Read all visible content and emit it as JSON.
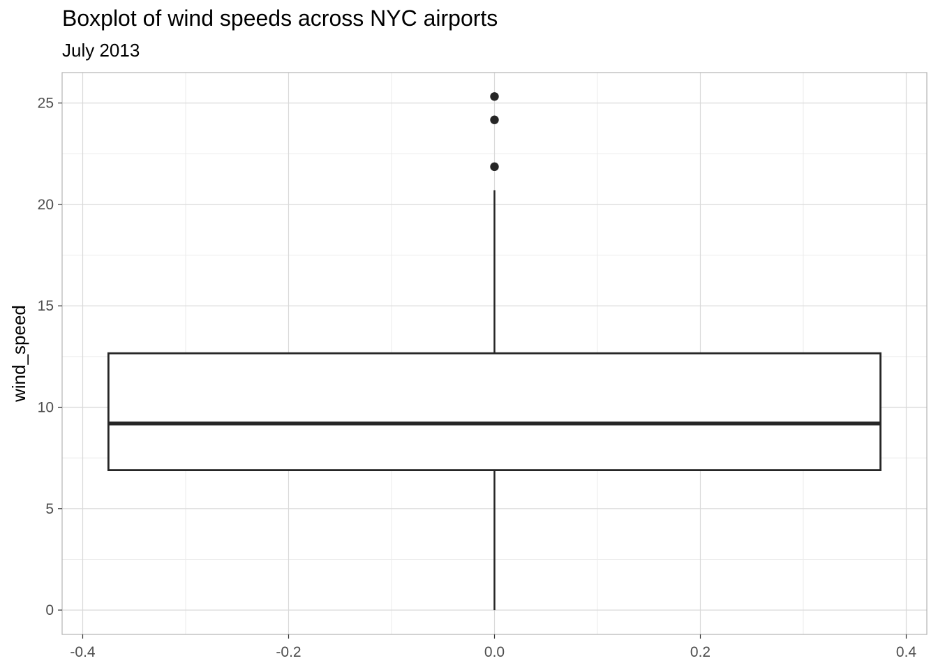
{
  "chart_data": {
    "type": "boxplot",
    "title": "Boxplot of wind speeds across NYC airports",
    "subtitle": "July 2013",
    "xlabel": "",
    "ylabel": "wind_speed",
    "xlim": [
      -0.42,
      0.42
    ],
    "ylim": [
      -1.2,
      26.5
    ],
    "x_ticks": [
      -0.4,
      -0.2,
      0.0,
      0.2,
      0.4
    ],
    "x_tick_labels": [
      "-0.4",
      "-0.2",
      "0.0",
      "0.2",
      "0.4"
    ],
    "y_ticks": [
      0,
      5,
      10,
      15,
      20,
      25
    ],
    "y_tick_labels": [
      "0",
      "5",
      "10",
      "15",
      "20",
      "25"
    ],
    "grid": true,
    "box": {
      "x": 0.0,
      "xmin": -0.375,
      "xmax": 0.375,
      "lower_whisker": 0.0,
      "q1": 6.9,
      "median": 9.2,
      "q3": 12.66,
      "upper_whisker": 20.7,
      "outliers": [
        21.86,
        24.17,
        25.32
      ]
    },
    "colors": {
      "box_stroke": "#262626",
      "box_fill": "#ffffff",
      "grid_major": "#d9d9d9",
      "grid_minor": "#ebebeb",
      "panel_border": "#b3b3b3"
    }
  }
}
